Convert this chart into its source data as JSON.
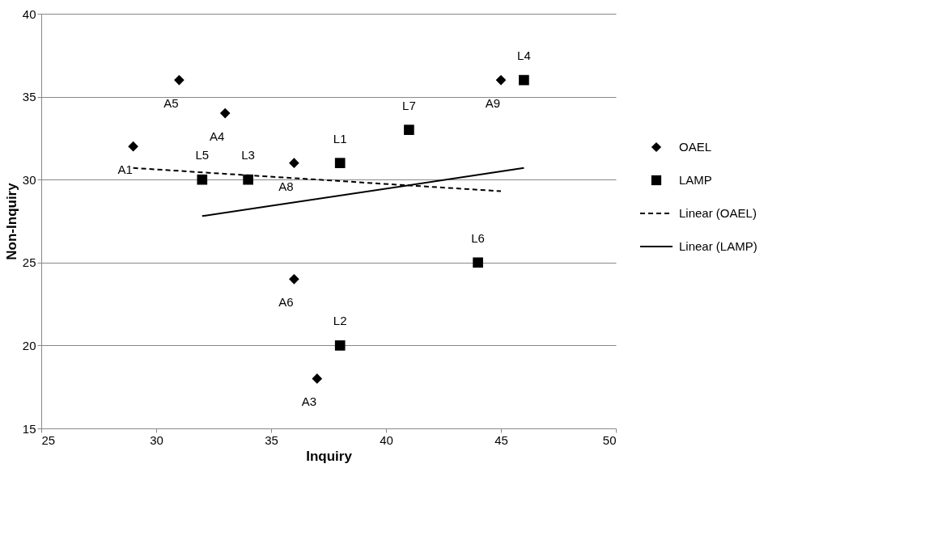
{
  "chart_data": {
    "type": "scatter",
    "xlabel": "Inquiry",
    "ylabel": "Non-Inquiry",
    "xlim": [
      25,
      50
    ],
    "xticks": [
      25,
      30,
      35,
      40,
      45,
      50
    ],
    "ylim": [
      15,
      40
    ],
    "yticks": [
      15,
      20,
      25,
      30,
      35,
      40
    ],
    "grid": "y",
    "legend": "right",
    "series": [
      {
        "name": "OAEL",
        "marker": "diamond",
        "color": "#000000",
        "x": [
          29,
          31,
          33,
          36,
          36,
          37,
          45
        ],
        "values": [
          32,
          36,
          34,
          31,
          24,
          18,
          36
        ],
        "value_labels": [
          "A1",
          "A5",
          "A4",
          "A8",
          "A6",
          "A3",
          "A9"
        ]
      },
      {
        "name": "LAMP",
        "marker": "square",
        "color": "#000000",
        "x": [
          32,
          34,
          38,
          41,
          46,
          44,
          38
        ],
        "values": [
          30,
          30,
          31,
          33,
          36,
          25,
          20
        ],
        "value_labels": [
          "L5",
          "L3",
          "L1",
          "L7",
          "L4",
          "L6",
          "L2"
        ]
      },
      {
        "name": "Linear (OAEL)",
        "type": "line",
        "marker": "none",
        "line_style": "dashed",
        "color": "#000000",
        "x": [
          29,
          45
        ],
        "values": [
          30.7,
          29.3
        ]
      },
      {
        "name": "Linear (LAMP)",
        "type": "line",
        "marker": "none",
        "line_style": "solid",
        "color": "#000000",
        "x": [
          32,
          46
        ],
        "values": [
          27.8,
          30.7
        ]
      }
    ]
  }
}
